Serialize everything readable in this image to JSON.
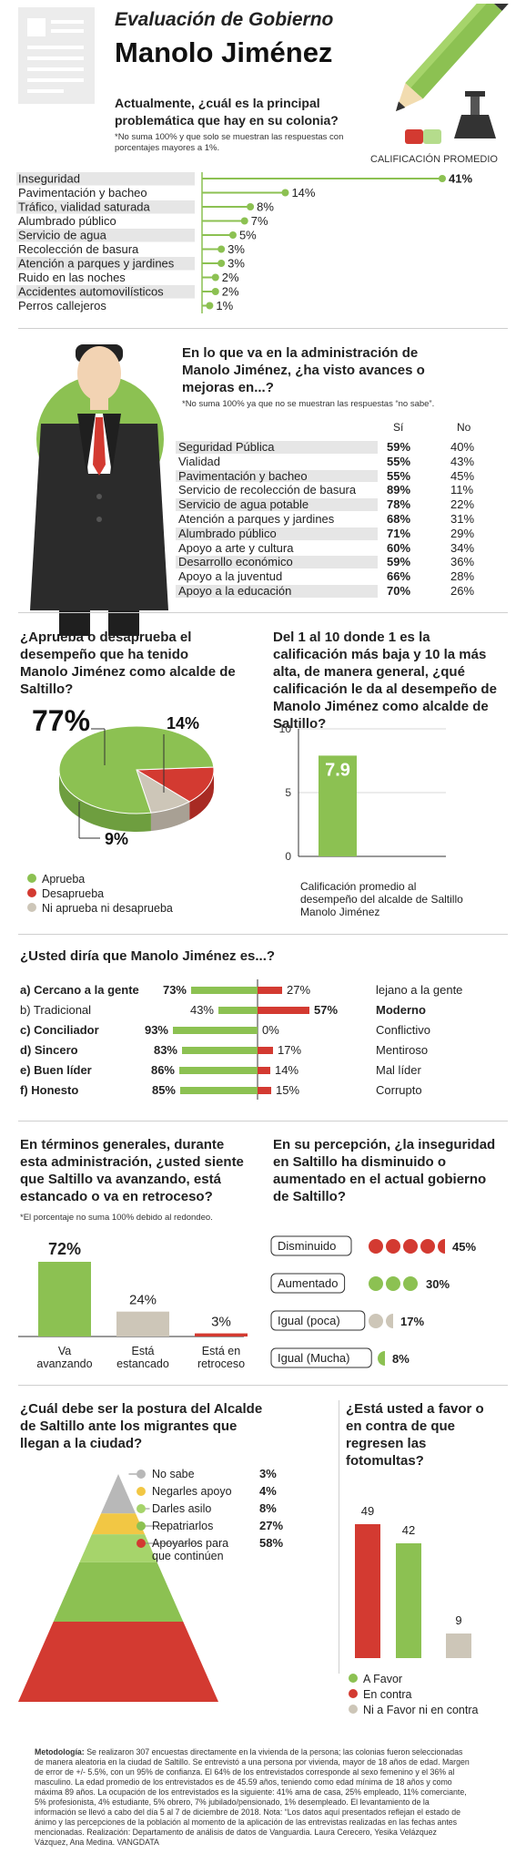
{
  "header": {
    "kicker": "Evaluación de Gobierno",
    "title": "Manolo Jiménez",
    "question": "Actualmente, ¿cuál es la principal problemática que hay en su colonia?",
    "note": "*No suma 100% y que solo se muestran las respuestas con porcentajes mayores a 1%.",
    "score_label": "CALIFICACIÓN PROMEDIO"
  },
  "colors": {
    "green": "#8cc152",
    "red": "#d33a31",
    "beige": "#cdc6b8",
    "gray": "#e6e6e6",
    "yellow": "#f2c744"
  },
  "problems": {
    "chart_data": {
      "type": "bar",
      "categories": [
        "Inseguridad",
        "Pavimentación y bacheo",
        "Tráfico, vialidad saturada",
        "Alumbrado público",
        "Servicio de agua",
        "Recolección de basura",
        "Atención a parques y jardines",
        "Ruido en las noches",
        "Accidentes automovilísticos",
        "Perros callejeros"
      ],
      "values": [
        41,
        14,
        8,
        7,
        5,
        3,
        3,
        2,
        2,
        1
      ],
      "labels": [
        "41%",
        "14%",
        "8%",
        "7%",
        "5%",
        "3%",
        "3%",
        "2%",
        "2%",
        "1%"
      ]
    }
  },
  "advances": {
    "question": "En lo que va en la administración de Manolo Jiménez, ¿ha visto avances o mejoras en...?",
    "note": "*No suma 100% ya que no se muestran las respuestas “no sabe”.",
    "col_yes": "Sí",
    "col_no": "No",
    "rows": [
      {
        "label": "Seguridad Pública",
        "yes": "59%",
        "no": "40%"
      },
      {
        "label": "Vialidad",
        "yes": "55%",
        "no": "43%"
      },
      {
        "label": "Pavimentación y bacheo",
        "yes": "55%",
        "no": "45%"
      },
      {
        "label": "Servicio de recolección de basura",
        "yes": "89%",
        "no": "11%"
      },
      {
        "label": "Servicio de agua potable",
        "yes": "78%",
        "no": "22%"
      },
      {
        "label": "Atención a parques y jardines",
        "yes": "68%",
        "no": "31%"
      },
      {
        "label": "Alumbrado público",
        "yes": "71%",
        "no": "29%"
      },
      {
        "label": "Apoyo a arte y cultura",
        "yes": "60%",
        "no": "34%"
      },
      {
        "label": "Desarrollo económico",
        "yes": "59%",
        "no": "36%"
      },
      {
        "label": "Apoyo a la juventud",
        "yes": "66%",
        "no": "28%"
      },
      {
        "label": "Apoyo a la educación",
        "yes": "70%",
        "no": "26%"
      }
    ]
  },
  "approval": {
    "question": "¿Aprueba o desaprueba el desempeño que ha tenido Manolo Jiménez como alcalde de Saltillo?",
    "chart_data": {
      "type": "pie",
      "categories": [
        "Aprueba",
        "Desaprueba",
        "Ni aprueba ni desaprueba"
      ],
      "values": [
        77,
        14,
        9
      ],
      "labels": [
        "77%",
        "14%",
        "9%"
      ]
    }
  },
  "score": {
    "question": "Del 1 al 10 donde 1 es la calificación más baja y 10 la más alta, de manera general, ¿qué calificación le da al desempeño de Manolo Jiménez como alcalde de Saltillo?",
    "caption": "Calificación promedio al desempeño del alcalde de Saltillo Manolo Jiménez",
    "chart_data": {
      "type": "bar",
      "values": [
        7.9
      ],
      "value_label": "7.9",
      "ylim": [
        0,
        10
      ],
      "yticks": [
        "0",
        "5",
        "10"
      ]
    }
  },
  "traits": {
    "question": "¿Usted diría que Manolo Jiménez es...?",
    "chart_data": {
      "type": "bar",
      "rows": [
        {
          "left": "a) Cercano a la gente",
          "left_strong": true,
          "left_value": 73,
          "left_label": "73%",
          "right_value": 27,
          "right_label": "27%",
          "right": "lejano a la gente",
          "right_strong": false
        },
        {
          "left": "b) Tradicional",
          "left_strong": false,
          "left_value": 43,
          "left_label": "43%",
          "right_value": 57,
          "right_label": "57%",
          "right": "Moderno",
          "right_strong": true
        },
        {
          "left": "c) Conciliador",
          "left_strong": true,
          "left_value": 93,
          "left_label": "93%",
          "right_value": 0,
          "right_label": "0%",
          "right": "Conflictivo",
          "right_strong": false
        },
        {
          "left": "d) Sincero",
          "left_strong": true,
          "left_value": 83,
          "left_label": "83%",
          "right_value": 17,
          "right_label": "17%",
          "right": "Mentiroso",
          "right_strong": false
        },
        {
          "left": "e) Buen líder",
          "left_strong": true,
          "left_value": 86,
          "left_label": "86%",
          "right_value": 14,
          "right_label": "14%",
          "right": "Mal líder",
          "right_strong": false
        },
        {
          "left": "f) Honesto",
          "left_strong": true,
          "left_value": 85,
          "left_label": "85%",
          "right_value": 15,
          "right_label": "15%",
          "right": "Corrupto",
          "right_strong": false
        }
      ]
    }
  },
  "direction": {
    "question": "En términos generales, durante esta administración, ¿usted siente que Saltillo va avanzando, está estancado o va en retroceso?",
    "note": "*El porcentaje no suma 100% debido al redondeo.",
    "chart_data": {
      "type": "bar",
      "categories": [
        "Va avanzando",
        "Está estancado",
        "Está en retroceso"
      ],
      "values": [
        72,
        24,
        3
      ],
      "labels": [
        "72%",
        "24%",
        "3%"
      ]
    }
  },
  "insecurity": {
    "question": "En su percepción, ¿la inseguridad en Saltillo ha disminuido o aumentado en el actual gobierno de Saltillo?",
    "chart_data": {
      "type": "bar",
      "categories": [
        "Disminuido",
        "Aumentado",
        "Igual (poca)",
        "Igual (Mucha)"
      ],
      "values": [
        45,
        30,
        17,
        8
      ],
      "labels": [
        "45%",
        "30%",
        "17%",
        "8%"
      ]
    }
  },
  "migrants": {
    "question": "¿Cuál debe ser la postura del Alcalde de Saltillo ante los migrantes que llegan a la ciudad?",
    "chart_data": {
      "type": "pyramid",
      "categories": [
        "No sabe",
        "Negarles apoyo",
        "Darles asilo",
        "Repatriarlos",
        "Apoyarlos para que continúen"
      ],
      "values": [
        3,
        4,
        8,
        27,
        58
      ],
      "labels": [
        "3%",
        "4%",
        "8%",
        "27%",
        "58%"
      ]
    }
  },
  "fines": {
    "question": "¿Está usted a favor o en contra de que regresen las fotomultas?",
    "chart_data": {
      "type": "bar",
      "categories": [
        "A Favor",
        "En contra",
        "Ni  a Favor ni en contra"
      ],
      "values": [
        42,
        49,
        9
      ],
      "labels": [
        "42",
        "49",
        "9"
      ]
    }
  },
  "methodology": {
    "title": "Metodología:",
    "text": "Se realizaron 307 encuestas directamente en la vivienda de la persona; las colonias fueron seleccionadas de manera aleatoria en la ciudad de Saltillo. Se entrevistó a una persona por vivienda, mayor de 18 años de edad. Margen de error de +/- 5.5%, con un 95% de confianza. El 64% de los entrevistados corresponde al sexo femenino y el 36% al masculino. La edad promedio de los entrevistados es de 45.59 años, teniendo como edad mínima de 18 años y como máxima 89 años. La ocupación de los entrevistados es la siguiente: 41% ama de casa, 25% empleado, 11% comerciante, 5% profesionista, 4% estudiante, 5% obrero, 7% jubilado/pensionado, 1% desempleado. El levantamiento de la información se llevó a cabo del día 5 al 7 de diciembre de 2018. Nota: “Los datos aquí presentados reflejan el estado de ánimo y las percepciones de la población al momento de la aplicación de las entrevistas realizadas en las fechas antes mencionadas. Realización: Departamento de análisis de datos de Vanguardia. Laura Cerecero, Yesika Velázquez Vázquez, Ana Medina. VANGDATA"
  }
}
